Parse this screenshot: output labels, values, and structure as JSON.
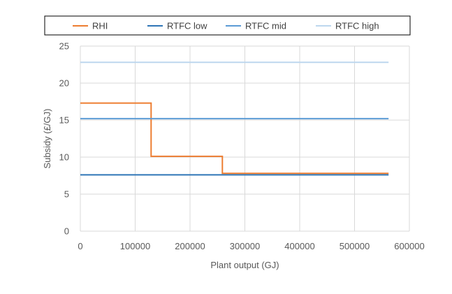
{
  "chart_data": {
    "type": "line",
    "title": "",
    "xlabel": "Plant output  (GJ)",
    "ylabel": "Subsidy (£/GJ)",
    "xlim": [
      0,
      600000
    ],
    "ylim": [
      0,
      25
    ],
    "x_ticks": [
      0,
      100000,
      200000,
      300000,
      400000,
      500000,
      600000
    ],
    "y_ticks": [
      0,
      5,
      10,
      15,
      20,
      25
    ],
    "grid": true,
    "legend_position": "top",
    "series": [
      {
        "name": "RHI",
        "color": "#ED7D31",
        "step": true,
        "points": [
          [
            0,
            17.3
          ],
          [
            129000,
            17.3
          ],
          [
            129000,
            10.1
          ],
          [
            259000,
            10.1
          ],
          [
            259000,
            7.8
          ],
          [
            562000,
            7.8
          ]
        ]
      },
      {
        "name": "RTFC low",
        "color": "#2E75B6",
        "step": false,
        "points": [
          [
            0,
            7.6
          ],
          [
            562000,
            7.6
          ]
        ]
      },
      {
        "name": "RTFC mid",
        "color": "#5B9BD5",
        "step": false,
        "points": [
          [
            0,
            15.2
          ],
          [
            562000,
            15.2
          ]
        ]
      },
      {
        "name": "RTFC high",
        "color": "#BDD7EE",
        "step": false,
        "points": [
          [
            0,
            22.8
          ],
          [
            562000,
            22.8
          ]
        ]
      }
    ]
  }
}
